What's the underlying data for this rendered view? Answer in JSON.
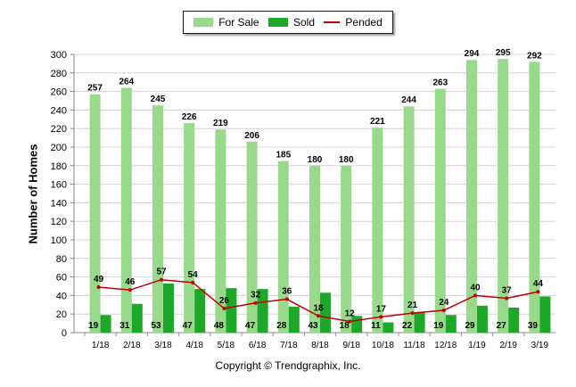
{
  "chart_data": {
    "type": "bar",
    "categories": [
      "1/18",
      "2/18",
      "3/18",
      "4/18",
      "5/18",
      "6/18",
      "7/18",
      "8/18",
      "9/18",
      "10/18",
      "11/18",
      "12/18",
      "1/19",
      "2/19",
      "3/19"
    ],
    "series": [
      {
        "name": "For Sale",
        "type": "bar",
        "color": "#99d98c",
        "values": [
          257,
          264,
          245,
          226,
          219,
          206,
          185,
          180,
          180,
          221,
          244,
          263,
          294,
          295,
          292
        ]
      },
      {
        "name": "Sold",
        "type": "bar",
        "color": "#1ea82a",
        "values": [
          19,
          31,
          53,
          47,
          48,
          47,
          28,
          43,
          18,
          11,
          22,
          19,
          29,
          27,
          39
        ]
      },
      {
        "name": "Pended",
        "type": "line",
        "color": "#c00000",
        "values": [
          49,
          46,
          57,
          54,
          26,
          32,
          36,
          18,
          12,
          17,
          21,
          24,
          40,
          37,
          44
        ]
      }
    ],
    "ylabel": "Number of Homes",
    "ylim": [
      0,
      300
    ],
    "yticks": [
      0,
      20,
      40,
      60,
      80,
      100,
      120,
      140,
      160,
      180,
      200,
      220,
      240,
      260,
      280,
      300
    ],
    "grid": true,
    "legend_position": "top-center"
  },
  "footer": {
    "copyright": "Copyright © Trendgraphix, Inc."
  }
}
